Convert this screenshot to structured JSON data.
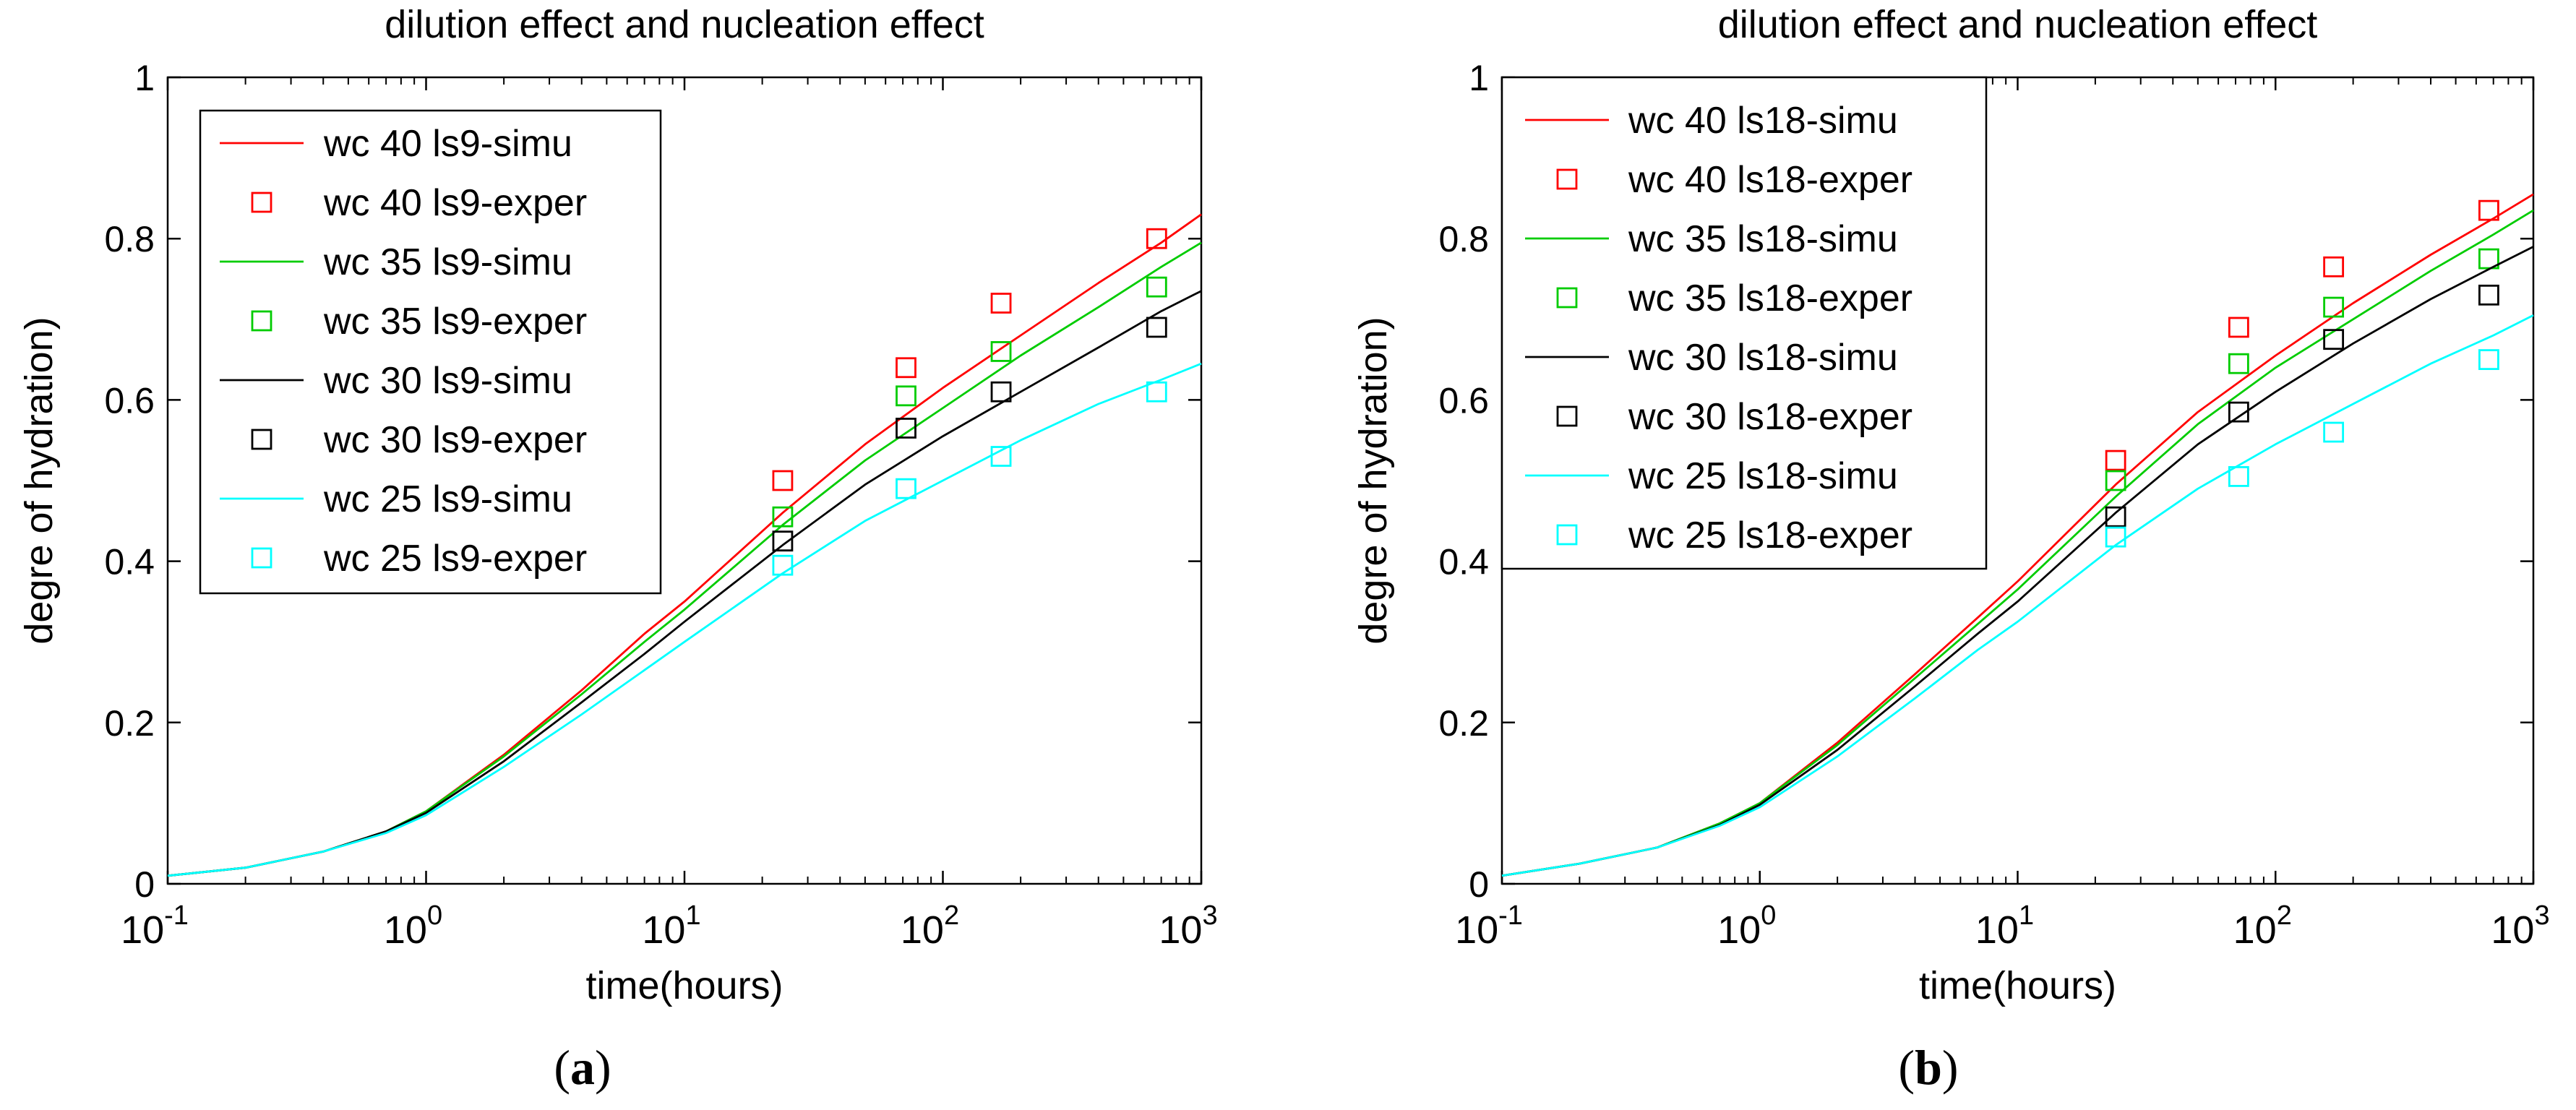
{
  "chart_data": [
    {
      "type": "line",
      "panel_label": "a",
      "title": "dilution effect and nucleation effect",
      "xlabel": "time(hours)",
      "ylabel": "degre of hydration)",
      "xscale": "log",
      "xlim": [
        0.1,
        1000
      ],
      "ylim": [
        0,
        1
      ],
      "xticks": [
        {
          "value": 0.1,
          "base": "10",
          "exp": "-1"
        },
        {
          "value": 1,
          "base": "10",
          "exp": "0"
        },
        {
          "value": 10,
          "base": "10",
          "exp": "1"
        },
        {
          "value": 100,
          "base": "10",
          "exp": "2"
        },
        {
          "value": 1000,
          "base": "10",
          "exp": "3"
        }
      ],
      "yticks": [
        {
          "value": 0,
          "label": "0"
        },
        {
          "value": 0.2,
          "label": "0.2"
        },
        {
          "value": 0.4,
          "label": "0.4"
        },
        {
          "value": 0.6,
          "label": "0.6"
        },
        {
          "value": 0.8,
          "label": "0.8"
        },
        {
          "value": 1,
          "label": "1"
        }
      ],
      "legend_position": "top-left",
      "legend": [
        {
          "label": "wc 40 ls9-simu",
          "kind": "line",
          "color": "#ff0000"
        },
        {
          "label": "wc 40 ls9-exper",
          "kind": "marker",
          "color": "#ff0000"
        },
        {
          "label": "wc 35 ls9-simu",
          "kind": "line",
          "color": "#00cc00"
        },
        {
          "label": "wc 35 ls9-exper",
          "kind": "marker",
          "color": "#00cc00"
        },
        {
          "label": "wc 30 ls9-simu",
          "kind": "line",
          "color": "#000000"
        },
        {
          "label": "wc 30 ls9-exper",
          "kind": "marker",
          "color": "#000000"
        },
        {
          "label": "wc 25 ls9-simu",
          "kind": "line",
          "color": "#00ffff"
        },
        {
          "label": "wc 25 ls9-exper",
          "kind": "marker",
          "color": "#00ffff"
        }
      ],
      "series": [
        {
          "name": "wc 40 ls9-simu",
          "kind": "line",
          "color": "#ff0000",
          "x": [
            0.1,
            0.2,
            0.4,
            0.7,
            1,
            2,
            4,
            7,
            10,
            24,
            50,
            100,
            200,
            400,
            700,
            1000
          ],
          "y": [
            0.01,
            0.02,
            0.04,
            0.065,
            0.09,
            0.16,
            0.24,
            0.31,
            0.35,
            0.46,
            0.545,
            0.615,
            0.68,
            0.745,
            0.795,
            0.83
          ]
        },
        {
          "name": "wc 40 ls9-exper",
          "kind": "marker",
          "color": "#ff0000",
          "x": [
            24,
            72,
            168,
            672
          ],
          "y": [
            0.5,
            0.64,
            0.72,
            0.8
          ]
        },
        {
          "name": "wc 35 ls9-simu",
          "kind": "line",
          "color": "#00cc00",
          "x": [
            0.1,
            0.2,
            0.4,
            0.7,
            1,
            2,
            4,
            7,
            10,
            24,
            50,
            100,
            200,
            400,
            700,
            1000
          ],
          "y": [
            0.01,
            0.02,
            0.04,
            0.065,
            0.09,
            0.158,
            0.235,
            0.3,
            0.34,
            0.445,
            0.525,
            0.59,
            0.655,
            0.715,
            0.765,
            0.795
          ]
        },
        {
          "name": "wc 35 ls9-exper",
          "kind": "marker",
          "color": "#00cc00",
          "x": [
            24,
            72,
            168,
            672
          ],
          "y": [
            0.455,
            0.605,
            0.66,
            0.74
          ]
        },
        {
          "name": "wc 30 ls9-simu",
          "kind": "line",
          "color": "#000000",
          "x": [
            0.1,
            0.2,
            0.4,
            0.7,
            1,
            2,
            4,
            7,
            10,
            24,
            50,
            100,
            200,
            400,
            700,
            1000
          ],
          "y": [
            0.01,
            0.02,
            0.04,
            0.065,
            0.088,
            0.152,
            0.225,
            0.285,
            0.325,
            0.42,
            0.495,
            0.555,
            0.61,
            0.665,
            0.71,
            0.735
          ]
        },
        {
          "name": "wc 30 ls9-exper",
          "kind": "marker",
          "color": "#000000",
          "x": [
            24,
            72,
            168,
            672
          ],
          "y": [
            0.425,
            0.565,
            0.61,
            0.69
          ]
        },
        {
          "name": "wc 25 ls9-simu",
          "kind": "line",
          "color": "#00ffff",
          "x": [
            0.1,
            0.2,
            0.4,
            0.7,
            1,
            2,
            4,
            7,
            10,
            24,
            50,
            100,
            200,
            400,
            700,
            1000
          ],
          "y": [
            0.01,
            0.02,
            0.04,
            0.063,
            0.085,
            0.145,
            0.21,
            0.265,
            0.3,
            0.385,
            0.45,
            0.5,
            0.55,
            0.595,
            0.625,
            0.645
          ]
        },
        {
          "name": "wc 25 ls9-exper",
          "kind": "marker",
          "color": "#00ffff",
          "x": [
            24,
            72,
            168,
            672
          ],
          "y": [
            0.395,
            0.49,
            0.53,
            0.61
          ]
        }
      ]
    },
    {
      "type": "line",
      "panel_label": "b",
      "title": "dilution effect and nucleation effect",
      "xlabel": "time(hours)",
      "ylabel": "degre of hydration)",
      "xscale": "log",
      "xlim": [
        0.1,
        1000
      ],
      "ylim": [
        0,
        1
      ],
      "xticks": [
        {
          "value": 0.1,
          "base": "10",
          "exp": "-1"
        },
        {
          "value": 1,
          "base": "10",
          "exp": "0"
        },
        {
          "value": 10,
          "base": "10",
          "exp": "1"
        },
        {
          "value": 100,
          "base": "10",
          "exp": "2"
        },
        {
          "value": 1000,
          "base": "10",
          "exp": "3"
        }
      ],
      "yticks": [
        {
          "value": 0,
          "label": "0"
        },
        {
          "value": 0.2,
          "label": "0.2"
        },
        {
          "value": 0.4,
          "label": "0.4"
        },
        {
          "value": 0.6,
          "label": "0.6"
        },
        {
          "value": 0.8,
          "label": "0.8"
        },
        {
          "value": 1,
          "label": "1"
        }
      ],
      "legend_position": "top-left",
      "legend": [
        {
          "label": "wc 40 ls18-simu",
          "kind": "line",
          "color": "#ff0000"
        },
        {
          "label": "wc 40 ls18-exper",
          "kind": "marker",
          "color": "#ff0000"
        },
        {
          "label": "wc 35 ls18-simu",
          "kind": "line",
          "color": "#00cc00"
        },
        {
          "label": "wc 35 ls18-exper",
          "kind": "marker",
          "color": "#00cc00"
        },
        {
          "label": "wc 30 ls18-simu",
          "kind": "line",
          "color": "#000000"
        },
        {
          "label": "wc 30 ls18-exper",
          "kind": "marker",
          "color": "#000000"
        },
        {
          "label": "wc 25 ls18-simu",
          "kind": "line",
          "color": "#00ffff"
        },
        {
          "label": "wc 25 ls18-exper",
          "kind": "marker",
          "color": "#00ffff"
        }
      ],
      "series": [
        {
          "name": "wc 40 ls18-simu",
          "kind": "line",
          "color": "#ff0000",
          "x": [
            0.1,
            0.2,
            0.4,
            0.7,
            1,
            2,
            4,
            7,
            10,
            24,
            50,
            100,
            200,
            400,
            700,
            1000
          ],
          "y": [
            0.01,
            0.025,
            0.045,
            0.075,
            0.1,
            0.175,
            0.26,
            0.33,
            0.375,
            0.495,
            0.585,
            0.655,
            0.72,
            0.78,
            0.825,
            0.855
          ]
        },
        {
          "name": "wc 40 ls18-exper",
          "kind": "marker",
          "color": "#ff0000",
          "x": [
            24,
            72,
            168,
            672
          ],
          "y": [
            0.525,
            0.69,
            0.765,
            0.835
          ]
        },
        {
          "name": "wc 35 ls18-simu",
          "kind": "line",
          "color": "#00cc00",
          "x": [
            0.1,
            0.2,
            0.4,
            0.7,
            1,
            2,
            4,
            7,
            10,
            24,
            50,
            100,
            200,
            400,
            700,
            1000
          ],
          "y": [
            0.01,
            0.025,
            0.045,
            0.075,
            0.1,
            0.172,
            0.255,
            0.322,
            0.365,
            0.48,
            0.57,
            0.64,
            0.7,
            0.76,
            0.805,
            0.835
          ]
        },
        {
          "name": "wc 35 ls18-exper",
          "kind": "marker",
          "color": "#00cc00",
          "x": [
            24,
            72,
            168,
            672
          ],
          "y": [
            0.5,
            0.645,
            0.715,
            0.775
          ]
        },
        {
          "name": "wc 30 ls18-simu",
          "kind": "line",
          "color": "#000000",
          "x": [
            0.1,
            0.2,
            0.4,
            0.7,
            1,
            2,
            4,
            7,
            10,
            24,
            50,
            100,
            200,
            400,
            700,
            1000
          ],
          "y": [
            0.01,
            0.025,
            0.045,
            0.073,
            0.098,
            0.166,
            0.245,
            0.31,
            0.35,
            0.46,
            0.545,
            0.61,
            0.67,
            0.725,
            0.765,
            0.79
          ]
        },
        {
          "name": "wc 30 ls18-exper",
          "kind": "marker",
          "color": "#000000",
          "x": [
            24,
            72,
            168,
            672
          ],
          "y": [
            0.455,
            0.585,
            0.675,
            0.73
          ]
        },
        {
          "name": "wc 25 ls18-simu",
          "kind": "line",
          "color": "#00ffff",
          "x": [
            0.1,
            0.2,
            0.4,
            0.7,
            1,
            2,
            4,
            7,
            10,
            24,
            50,
            100,
            200,
            400,
            700,
            1000
          ],
          "y": [
            0.01,
            0.025,
            0.045,
            0.072,
            0.095,
            0.158,
            0.23,
            0.29,
            0.325,
            0.42,
            0.49,
            0.545,
            0.595,
            0.645,
            0.68,
            0.705
          ]
        },
        {
          "name": "wc 25 ls18-exper",
          "kind": "marker",
          "color": "#00ffff",
          "x": [
            24,
            72,
            168,
            672
          ],
          "y": [
            0.43,
            0.505,
            0.56,
            0.65
          ]
        }
      ]
    }
  ]
}
